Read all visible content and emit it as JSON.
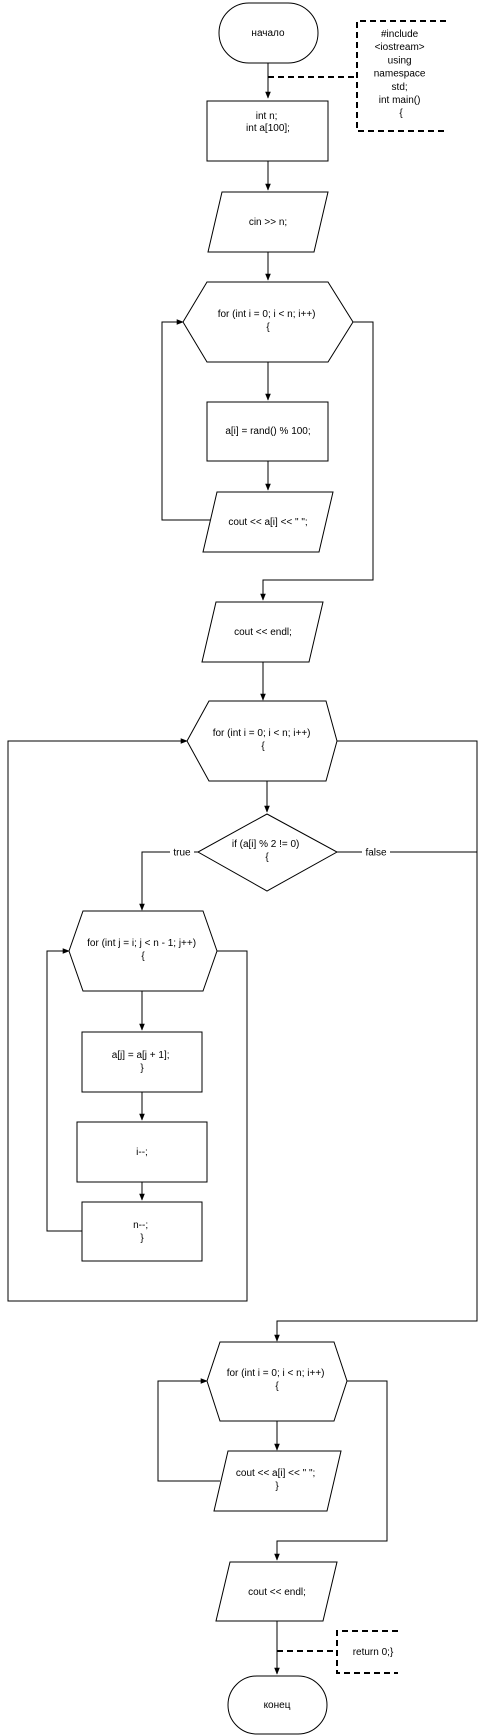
{
  "nodes": {
    "start": [
      "начало"
    ],
    "declare": [
      "int n;",
      "",
      "int a[100];"
    ],
    "input_n": [
      "cin >> n;"
    ],
    "loop_fill": [
      "for (int i = 0; i < n; i++)",
      "{"
    ],
    "assign_rand": [
      "a[i] = rand() % 100;"
    ],
    "print_elem": [
      "cout << a[i] << \" \";"
    ],
    "print_endl_1": [
      "cout << endl;"
    ],
    "loop_outer": [
      "for (int i = 0; i < n; i++)",
      "{"
    ],
    "cond_odd": [
      "if (a[i] % 2 != 0)",
      "{"
    ],
    "loop_shift": [
      "for (int j = i; j < n - 1; j++)",
      "{"
    ],
    "shift_elem": [
      "a[j] = a[j + 1];",
      "}"
    ],
    "dec_i": [
      "i--;"
    ],
    "dec_n": [
      "n--;",
      "}"
    ],
    "loop_print": [
      "for (int i = 0; i < n; i++)",
      "{"
    ],
    "print_elem_2": [
      "cout << a[i] << \" \";",
      "}"
    ],
    "print_endl_2": [
      "cout << endl;"
    ],
    "end": [
      "конец"
    ]
  },
  "notes": {
    "header": [
      "#include",
      "<iostream>",
      "using",
      "namespace",
      "std;",
      "int main()",
      "{"
    ],
    "return": [
      "return 0;}"
    ]
  },
  "edge_labels": {
    "true": "true",
    "false": "false"
  }
}
